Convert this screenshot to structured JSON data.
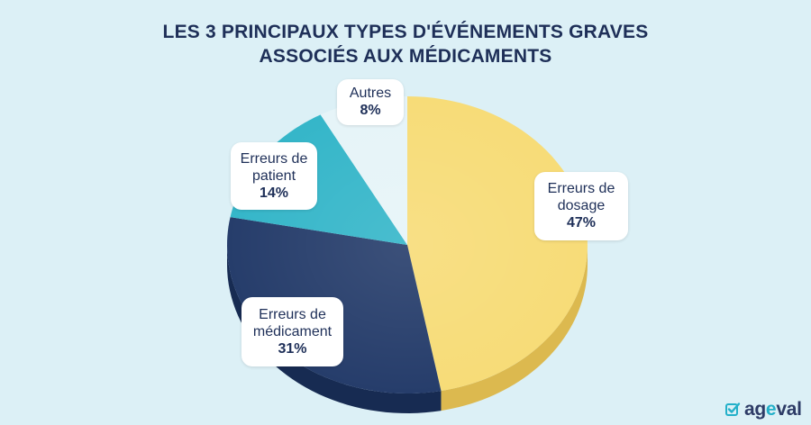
{
  "title": {
    "line1": "LES 3 PRINCIPAUX TYPES D'ÉVÉNEMENTS GRAVES",
    "line2": "ASSOCIÉS AUX MÉDICAMENTS"
  },
  "chart_data": {
    "type": "pie",
    "title": "LES 3 PRINCIPAUX TYPES D'ÉVÉNEMENTS GRAVES ASSOCIÉS AUX MÉDICAMENTS",
    "slices": [
      {
        "name": "Erreurs de dosage",
        "label_line1": "Erreurs de",
        "label_line2": "dosage",
        "value": 47,
        "value_label": "47%",
        "color": "#f7dc78",
        "side_color": "#dcb94f"
      },
      {
        "name": "Erreurs de médicament",
        "label_line1": "Erreurs de",
        "label_line2": "médicament",
        "value": 31,
        "value_label": "31%",
        "color": "#263d6b",
        "side_color": "#172b52"
      },
      {
        "name": "Erreurs de patient",
        "label_line1": "Erreurs de",
        "label_line2": "patient",
        "value": 14,
        "value_label": "14%",
        "color": "#35b6c9",
        "side_color": "#1d8fa3"
      },
      {
        "name": "Autres",
        "label_line1": "Autres",
        "label_line2": "",
        "value": 8,
        "value_label": "8%",
        "color": "#e6f4f8",
        "side_color": "#bcd9e2"
      }
    ],
    "legend": "none",
    "grid": false
  },
  "brand": {
    "name_part1": "ag",
    "name_part2": "e",
    "name_part3": "val",
    "accent_color": "#23b0c9",
    "icon": "check-square-icon"
  }
}
